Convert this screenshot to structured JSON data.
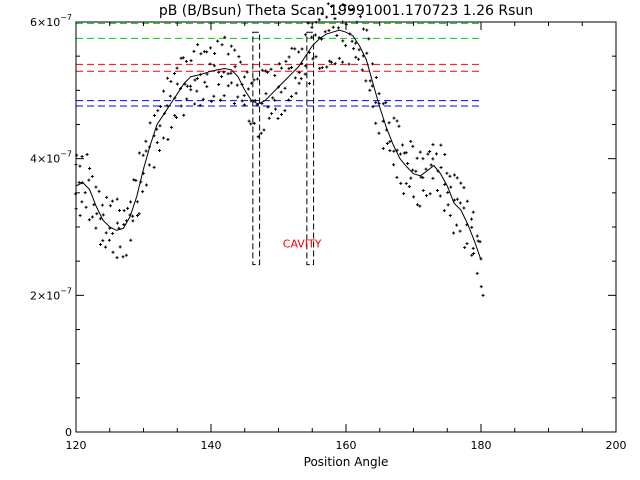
{
  "chart_data": {
    "type": "scatter",
    "title": "pB (B/Bsun) Theta Scan 19991001.170723 1.26 Rsun",
    "xlabel": "Position Angle",
    "ylabel": "",
    "xlim": [
      120,
      200
    ],
    "ylim": [
      0,
      6e-07
    ],
    "x_ticks": [
      {
        "value": 120,
        "label": "120"
      },
      {
        "value": 140,
        "label": "140"
      },
      {
        "value": 160,
        "label": "160"
      },
      {
        "value": 180,
        "label": "180"
      },
      {
        "value": 200,
        "label": "200"
      }
    ],
    "y_ticks": [
      {
        "value": 0,
        "base": "0",
        "exp": ""
      },
      {
        "value": 2e-07,
        "base": "2×10",
        "exp": "−7"
      },
      {
        "value": 4e-07,
        "base": "4×10",
        "exp": "−7"
      },
      {
        "value": 6e-07,
        "base": "6×10",
        "exp": "−7"
      }
    ],
    "grid": false,
    "smooth_curve": {
      "x": [
        120,
        121,
        122,
        123,
        124,
        125,
        126,
        127,
        128,
        129,
        130,
        131,
        132,
        133,
        134,
        135,
        136,
        137,
        138,
        139,
        140,
        141,
        142,
        143,
        144,
        145,
        146,
        147,
        148,
        149,
        150,
        151,
        152,
        153,
        154,
        155,
        156,
        157,
        158,
        159,
        160,
        161,
        162,
        163,
        164,
        165,
        166,
        167,
        168,
        169,
        170,
        171,
        172,
        173,
        174,
        175,
        176,
        177,
        178,
        179,
        180
      ],
      "y": [
        3.6e-07,
        3.65e-07,
        3.55e-07,
        3.3e-07,
        3.1e-07,
        3e-07,
        2.95e-07,
        2.98e-07,
        3.15e-07,
        3.45e-07,
        3.85e-07,
        4.2e-07,
        4.5e-07,
        4.65e-07,
        4.8e-07,
        4.95e-07,
        5.1e-07,
        5.2e-07,
        5.22e-07,
        5.25e-07,
        5.28e-07,
        5.3e-07,
        5.32e-07,
        5.3e-07,
        5.2e-07,
        5e-07,
        4.85e-07,
        4.8e-07,
        4.85e-07,
        4.95e-07,
        5.05e-07,
        5.15e-07,
        5.25e-07,
        5.35e-07,
        5.5e-07,
        5.65e-07,
        5.75e-07,
        5.82e-07,
        5.85e-07,
        5.88e-07,
        5.85e-07,
        5.8e-07,
        5.65e-07,
        5.45e-07,
        5.1e-07,
        4.75e-07,
        4.45e-07,
        4.2e-07,
        4e-07,
        3.88e-07,
        3.78e-07,
        3.75e-07,
        3.82e-07,
        3.9e-07,
        3.78e-07,
        3.6e-07,
        3.35e-07,
        3.25e-07,
        3.05e-07,
        2.8e-07,
        2.52e-07
      ]
    },
    "scatter_spread": 3e-08,
    "scatter_extra": [
      {
        "x": 180.3,
        "y": 2e-07
      },
      {
        "x": 120.1,
        "y": 4.05e-07
      },
      {
        "x": 159.5,
        "y": 6e-07
      }
    ],
    "hlines": [
      {
        "y": 5.98e-07,
        "color": "#00cc00",
        "x_range": [
          120,
          180
        ]
      },
      {
        "y": 5.76e-07,
        "color": "#00cc00",
        "x_range": [
          120,
          180
        ]
      },
      {
        "y": 5.38e-07,
        "color": "#ff0000",
        "x_range": [
          120,
          180
        ]
      },
      {
        "y": 5.28e-07,
        "color": "#ff0000",
        "x_range": [
          120,
          180
        ]
      },
      {
        "y": 4.85e-07,
        "color": "#0000ff",
        "x_range": [
          120,
          180
        ]
      },
      {
        "y": 4.77e-07,
        "color": "#0000ff",
        "x_range": [
          120,
          180
        ]
      }
    ],
    "cavity_boxes": [
      {
        "x": [
          146.2,
          147.2
        ],
        "y": [
          2.45e-07,
          5.85e-07
        ]
      },
      {
        "x": [
          154.2,
          155.2
        ],
        "y": [
          2.45e-07,
          5.85e-07
        ]
      }
    ],
    "annotation": {
      "text": "CAVITY",
      "x": 153.5,
      "y": 2.7e-07,
      "color": "#ff0000"
    }
  }
}
